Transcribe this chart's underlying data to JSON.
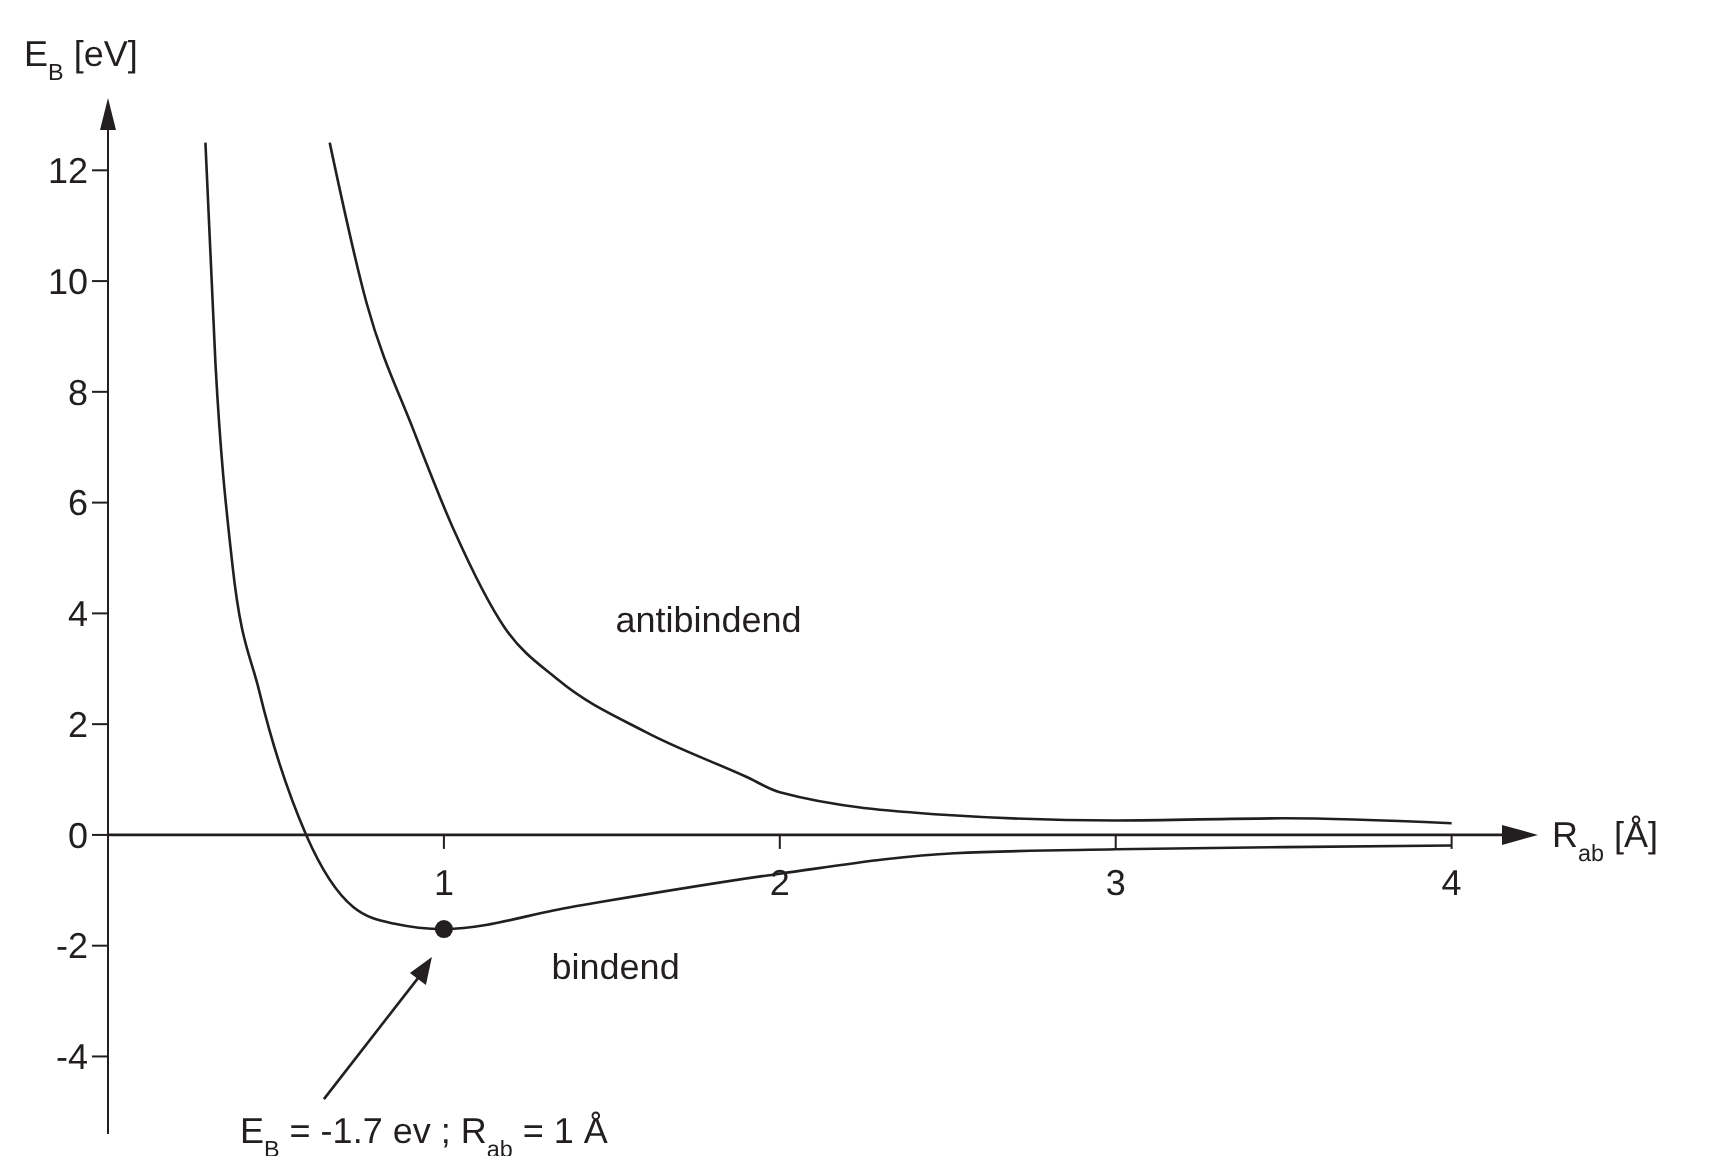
{
  "chart_data": {
    "type": "line",
    "ylabel": "E$_{B}$ [eV]",
    "xlabel": "R$_{ab}$ [Å]",
    "xlim": [
      0,
      4.15
    ],
    "xticks": [
      1,
      2,
      3,
      4
    ],
    "ylim": [
      -5.4,
      12.8
    ],
    "yticks": [
      -4,
      -2,
      0,
      2,
      4,
      6,
      8,
      10,
      12
    ],
    "marker": "none",
    "line_style": "solid",
    "series": [
      {
        "name": "bindend",
        "color": "#231f20",
        "x": [
          0.29,
          0.32,
          0.37,
          0.45,
          0.59,
          0.73,
          0.85,
          1,
          1.38,
          2,
          2.52,
          3,
          3.5,
          4
        ],
        "values": [
          12.5,
          8.5,
          4.9,
          2.6,
          0,
          -1.3,
          -1.6,
          -1.7,
          -1.3,
          -0.7,
          -0.33,
          -0.26,
          -0.22,
          -0.19
        ]
      },
      {
        "name": "antibindend",
        "color": "#231f20",
        "x": [
          0.66,
          0.77,
          0.91,
          1.03,
          1.18,
          1.34,
          1.6,
          1.9,
          2,
          2.5,
          3,
          3.5,
          4
        ],
        "values": [
          12.5,
          9.6,
          7.3,
          5.5,
          3.75,
          2.8,
          1.86,
          1.05,
          0.77,
          0.36,
          0.26,
          0.3,
          0.21
        ]
      },
      {
        "type": "scatter",
        "color": "#231f20",
        "marker": "circle",
        "x": [
          1
        ],
        "values": [
          -1.7
        ]
      }
    ],
    "annotations": [
      "E$_{B}$ = -1.7 ev ; R$_{ab}$ = 1 Å"
    ]
  }
}
